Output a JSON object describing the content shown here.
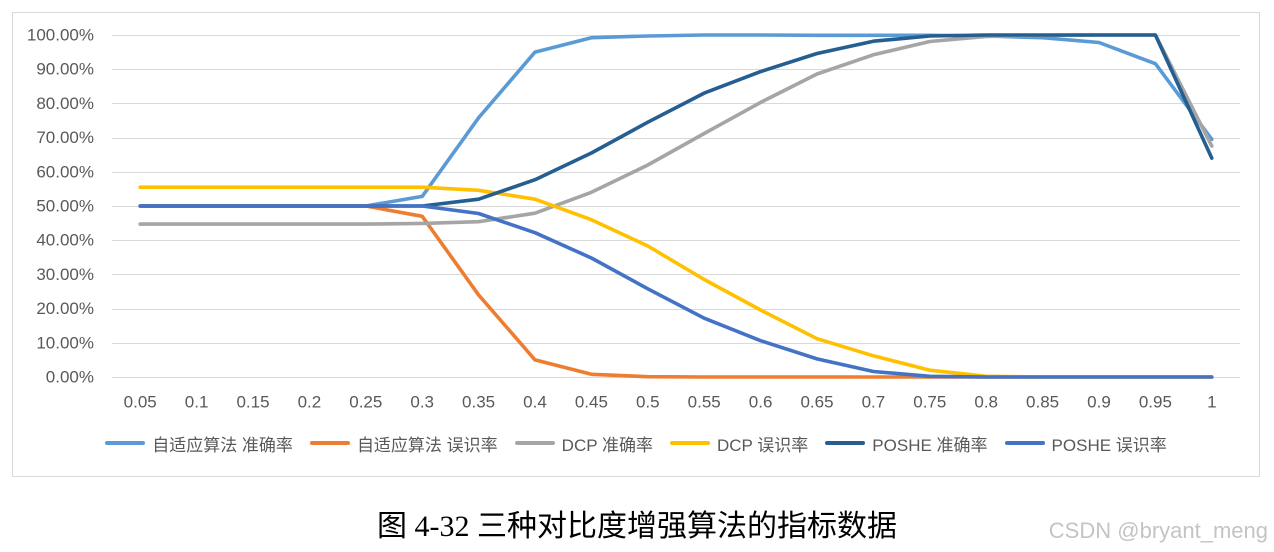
{
  "chart_data": {
    "type": "line",
    "categories": [
      "0.05",
      "0.1",
      "0.15",
      "0.2",
      "0.25",
      "0.3",
      "0.35",
      "0.4",
      "0.45",
      "0.5",
      "0.55",
      "0.6",
      "0.65",
      "0.7",
      "0.75",
      "0.8",
      "0.85",
      "0.9",
      "0.95",
      "1"
    ],
    "yticks": [
      "0.00%",
      "10.00%",
      "20.00%",
      "30.00%",
      "40.00%",
      "50.00%",
      "60.00%",
      "70.00%",
      "80.00%",
      "90.00%",
      "100.00%"
    ],
    "ylim": [
      0,
      100
    ],
    "grid": true,
    "legend_position": "bottom",
    "series": [
      {
        "name": "自适应算法 准确率",
        "color": "#5B9BD5",
        "values": [
          50,
          50,
          50,
          50,
          50,
          52.8,
          75.8,
          95.0,
          99.2,
          99.7,
          100,
          100,
          99.9,
          99.9,
          99.9,
          99.7,
          99.2,
          97.8,
          91.6,
          69.5
        ]
      },
      {
        "name": "自适应算法 误识率",
        "color": "#ED7D31",
        "values": [
          50,
          50,
          50,
          50,
          50,
          47.0,
          24.0,
          5.0,
          0.8,
          0.1,
          0,
          0,
          0,
          0,
          0,
          0,
          0,
          0,
          0,
          0
        ]
      },
      {
        "name": "DCP 准确率",
        "color": "#A5A5A5",
        "values": [
          44.7,
          44.7,
          44.7,
          44.7,
          44.7,
          44.9,
          45.4,
          47.9,
          54.0,
          62.0,
          71.2,
          80.3,
          88.6,
          94.2,
          98.1,
          99.6,
          99.9,
          100,
          100,
          67.5
        ]
      },
      {
        "name": "DCP 误识率",
        "color": "#FFC000",
        "values": [
          55.5,
          55.5,
          55.5,
          55.5,
          55.5,
          55.5,
          54.6,
          52.0,
          46.0,
          38.3,
          28.5,
          19.6,
          11.2,
          6.2,
          2.0,
          0.2,
          0,
          0,
          0,
          0
        ]
      },
      {
        "name": "POSHE 准确率",
        "color": "#255E91",
        "values": [
          50,
          50,
          50,
          50,
          50,
          50,
          52.0,
          57.7,
          65.5,
          74.5,
          83.0,
          89.3,
          94.6,
          98.2,
          99.7,
          100,
          100,
          100,
          100,
          64.0
        ]
      },
      {
        "name": "POSHE 误识率",
        "color": "#4472C4",
        "values": [
          50,
          50,
          50,
          50,
          50,
          50,
          47.8,
          42.2,
          34.8,
          25.8,
          17.2,
          10.6,
          5.3,
          1.6,
          0.2,
          0,
          0,
          0,
          0,
          0
        ]
      }
    ]
  },
  "figure": {
    "caption": "图 4-32 三种对比度增强算法的指标数据",
    "watermark": "CSDN @bryant_meng"
  }
}
